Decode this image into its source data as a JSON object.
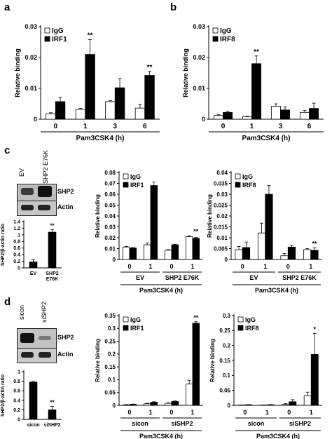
{
  "panel_labels": [
    "a",
    "b",
    "c",
    "d"
  ],
  "colors": {
    "igg": "#ffffff",
    "irf": "#000000",
    "axis": "#000000",
    "blot_bg": "#c9c9c9",
    "band": "#1a1a1a"
  },
  "blots": {
    "c": {
      "lanes": [
        "EV",
        "SHP2 E76K"
      ],
      "bands": [
        "SHP2",
        "Actin"
      ]
    },
    "d": {
      "lanes": [
        "sicon",
        "siSHP2"
      ],
      "bands": [
        "SHP2",
        "Actin"
      ]
    }
  },
  "chart_data": [
    {
      "id": "a",
      "type": "bar",
      "ylabel": "Relative binding",
      "yticks": [
        "0",
        "0.01",
        "0.02",
        "0.03"
      ],
      "ylim": [
        0,
        0.03
      ],
      "categories": [
        "0",
        "1",
        "3",
        "6"
      ],
      "groups": [
        {
          "label": "Pam3CSK4 (h)",
          "span": [
            0,
            3
          ]
        }
      ],
      "series": [
        {
          "name": "IgG",
          "values": [
            0.0018,
            0.0032,
            0.0057,
            0.0036
          ],
          "errors": [
            0.0003,
            0.0003,
            0.0003,
            0.0012
          ]
        },
        {
          "name": "IRF1",
          "values": [
            0.0057,
            0.021,
            0.0102,
            0.0142
          ],
          "errors": [
            0.0014,
            0.0048,
            0.003,
            0.0013
          ]
        }
      ],
      "significance": [
        "",
        "**",
        "",
        "**"
      ],
      "legend": "top-left"
    },
    {
      "id": "b",
      "type": "bar",
      "ylabel": "Relative binding",
      "yticks": [
        "0",
        "0.01",
        "0.02",
        "0.03"
      ],
      "ylim": [
        0,
        0.03
      ],
      "categories": [
        "0",
        "1",
        "3",
        "6"
      ],
      "groups": [
        {
          "label": "Pam3CSK4 (h)",
          "span": [
            0,
            3
          ]
        }
      ],
      "series": [
        {
          "name": "IgG",
          "values": [
            0.0012,
            0.0008,
            0.0042,
            0.0022
          ],
          "errors": [
            0.0003,
            0.0002,
            0.0008,
            0.0006
          ]
        },
        {
          "name": "IRF8",
          "values": [
            0.0022,
            0.018,
            0.003,
            0.0035
          ],
          "errors": [
            0.0004,
            0.0025,
            0.001,
            0.0017
          ]
        }
      ],
      "significance": [
        "",
        "**",
        "",
        ""
      ],
      "legend": "top-left"
    },
    {
      "id": "c-ratio",
      "type": "bar",
      "ylabel": "SHP2/β-actin ratio",
      "yticks": [
        "0",
        "0.2",
        "0.4",
        "0.6",
        "0.8",
        "1",
        "1.2",
        "1.4"
      ],
      "ylim": [
        0,
        1.4
      ],
      "categories": [
        "EV",
        "SHP2 E76K"
      ],
      "series": [
        {
          "name": "",
          "values": [
            0.18,
            1.08
          ],
          "errors": [
            0.07,
            0.08
          ]
        }
      ],
      "significance": [
        "",
        "**"
      ]
    },
    {
      "id": "c-irf1",
      "type": "bar",
      "ylabel": "Relative binding",
      "yticks": [
        "0",
        "0.01",
        "0.02",
        "0.03",
        "0.04",
        "0.05",
        "0.06",
        "0.07",
        "0.08"
      ],
      "ylim": [
        0,
        0.08
      ],
      "categories": [
        "0",
        "1",
        "0",
        "1"
      ],
      "groups": [
        {
          "label": "EV",
          "span": [
            0,
            1
          ]
        },
        {
          "label": "SHP2 E76K",
          "span": [
            2,
            3
          ]
        },
        {
          "label": "Pam3CSK4 (h)",
          "span": [
            0,
            3
          ]
        }
      ],
      "series": [
        {
          "name": "IgG",
          "values": [
            0.0115,
            0.0135,
            0.0085,
            0.021
          ],
          "errors": [
            0.0005,
            0.0018,
            0.0006,
            0.0008
          ]
        },
        {
          "name": "IRF1",
          "values": [
            0.0105,
            0.068,
            0.0135,
            0.0195
          ],
          "errors": [
            0.0005,
            0.0032,
            0.0005,
            0.0008
          ]
        }
      ],
      "significance": [
        "",
        "",
        "",
        "**"
      ],
      "legend": "top-left"
    },
    {
      "id": "c-irf8",
      "type": "bar",
      "ylabel": "Relative binding",
      "yticks": [
        "0",
        "0.005",
        "0.01",
        "0.015",
        "0.02",
        "0.025",
        "0.03",
        "0.035",
        "0.04"
      ],
      "ylim": [
        0,
        0.04
      ],
      "categories": [
        "0",
        "1",
        "0",
        "1"
      ],
      "groups": [
        {
          "label": "EV",
          "span": [
            0,
            1
          ]
        },
        {
          "label": "SHP2 E76K",
          "span": [
            2,
            3
          ]
        },
        {
          "label": "Pam3CSK4 (h)",
          "span": [
            0,
            3
          ]
        }
      ],
      "series": [
        {
          "name": "IgG",
          "values": [
            0.0045,
            0.0122,
            0.0017,
            0.0045
          ],
          "errors": [
            0.0015,
            0.0045,
            0.001,
            0.0005
          ]
        },
        {
          "name": "IRF8",
          "values": [
            0.0055,
            0.03,
            0.0057,
            0.0042
          ],
          "errors": [
            0.0025,
            0.004,
            0.0008,
            0.0012
          ]
        }
      ],
      "significance": [
        "",
        "",
        "",
        "**"
      ],
      "legend": "top-left"
    },
    {
      "id": "d-ratio",
      "type": "bar",
      "ylabel": "SHP2/β-actin ratio",
      "yticks": [
        "0",
        "0.2",
        "0.4",
        "0.6",
        "0.8",
        "1"
      ],
      "ylim": [
        0,
        1
      ],
      "categories": [
        "sicon",
        "siSHP2"
      ],
      "series": [
        {
          "name": "",
          "values": [
            0.78,
            0.2
          ],
          "errors": [
            0.02,
            0.07
          ]
        }
      ],
      "significance": [
        "",
        "**"
      ]
    },
    {
      "id": "d-irf1",
      "type": "bar",
      "ylabel": "Relative binding",
      "yticks": [
        "0",
        "0.05",
        "0.1",
        "0.15",
        "0.2",
        "0.25",
        "0.3",
        "0.35"
      ],
      "ylim": [
        0,
        0.35
      ],
      "categories": [
        "0",
        "1",
        "0",
        "1"
      ],
      "groups": [
        {
          "label": "sicon",
          "span": [
            0,
            1
          ]
        },
        {
          "label": "siSHP2",
          "span": [
            2,
            3
          ]
        },
        {
          "label": "Pam3CSK4 (h)",
          "span": [
            0,
            3
          ]
        }
      ],
      "series": [
        {
          "name": "IgG",
          "values": [
            0.002,
            0.006,
            0.008,
            0.083
          ],
          "errors": [
            0.001,
            0.002,
            0.002,
            0.015
          ]
        },
        {
          "name": "IRF1",
          "values": [
            0.004,
            0.012,
            0.015,
            0.32
          ],
          "errors": [
            0.001,
            0.002,
            0.002,
            0.006
          ]
        }
      ],
      "significance": [
        "",
        "",
        "",
        "**"
      ],
      "legend": "top-left"
    },
    {
      "id": "d-irf8",
      "type": "bar",
      "ylabel": "Relative binding",
      "yticks": [
        "0",
        "0.05",
        "0.1",
        "0.15",
        "0.2",
        "0.25",
        "0.3"
      ],
      "ylim": [
        0,
        0.3
      ],
      "categories": [
        "0",
        "1",
        "0",
        "1"
      ],
      "groups": [
        {
          "label": "sicon",
          "span": [
            0,
            1
          ]
        },
        {
          "label": "siSHP2",
          "span": [
            2,
            3
          ]
        },
        {
          "label": "Pam3CSK4 (h)",
          "span": [
            0,
            3
          ]
        }
      ],
      "series": [
        {
          "name": "IgG",
          "values": [
            0.001,
            0.001,
            0.003,
            0.032
          ],
          "errors": [
            0.0005,
            0.0005,
            0.003,
            0.012
          ]
        },
        {
          "name": "IRF8",
          "values": [
            0.002,
            0.002,
            0.012,
            0.17
          ],
          "errors": [
            0.0005,
            0.0005,
            0.007,
            0.07
          ]
        }
      ],
      "significance": [
        "",
        "",
        "",
        "*"
      ],
      "legend": "top-left"
    }
  ]
}
